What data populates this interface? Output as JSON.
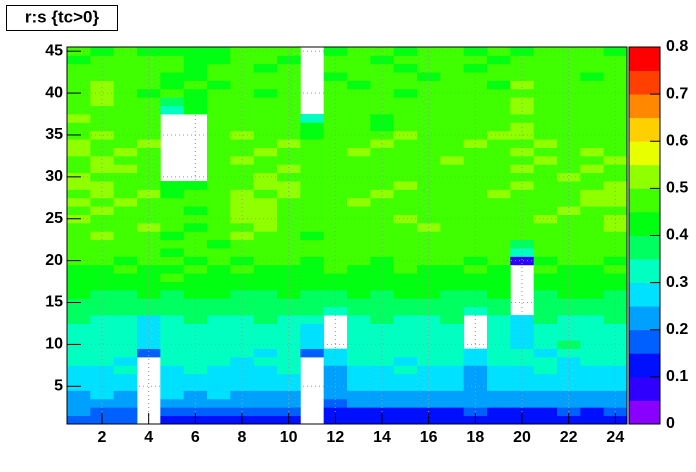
{
  "chart_data": {
    "type": "heatmap",
    "title": "r:s {tc>0}",
    "x": [
      1,
      2,
      3,
      4,
      5,
      6,
      7,
      8,
      9,
      10,
      11,
      12,
      13,
      14,
      15,
      16,
      17,
      18,
      19,
      20,
      21,
      22,
      23,
      24
    ],
    "y": [
      1,
      2,
      3,
      4,
      5,
      6,
      7,
      8,
      9,
      10,
      11,
      12,
      13,
      14,
      15,
      16,
      17,
      18,
      19,
      20,
      21,
      22,
      23,
      24,
      25,
      26,
      27,
      28,
      29,
      30,
      31,
      32,
      33,
      34,
      35,
      36,
      37,
      38,
      39,
      40,
      41,
      42,
      43,
      44,
      45
    ],
    "z": [
      [
        0.17,
        0.17,
        0.16,
        null,
        0.14,
        0.14,
        0.15,
        0.13,
        0.12,
        0.13,
        null,
        0.1,
        0.11,
        0.1,
        0.11,
        0.1,
        0.11,
        0.12,
        0.11,
        0.1,
        0.11,
        0.1,
        0.11,
        0.12
      ],
      [
        0.2,
        0.19,
        0.18,
        null,
        0.18,
        0.19,
        0.17,
        0.19,
        0.18,
        0.17,
        null,
        0.14,
        0.15,
        0.14,
        0.15,
        0.14,
        0.15,
        0.16,
        0.15,
        0.14,
        0.15,
        0.16,
        0.15,
        0.16
      ],
      [
        0.22,
        0.23,
        0.24,
        null,
        0.21,
        0.22,
        0.22,
        0.21,
        0.22,
        0.23,
        null,
        0.18,
        0.21,
        0.2,
        0.22,
        0.21,
        0.2,
        0.21,
        0.2,
        0.22,
        0.21,
        0.21,
        0.22,
        0.2
      ],
      [
        0.24,
        0.25,
        0.24,
        null,
        0.26,
        0.24,
        0.25,
        0.24,
        0.23,
        0.24,
        null,
        0.21,
        0.23,
        0.22,
        0.24,
        0.23,
        0.22,
        0.23,
        0.22,
        0.23,
        0.22,
        0.24,
        0.23,
        0.22
      ],
      [
        0.26,
        0.27,
        0.28,
        null,
        0.27,
        0.26,
        0.28,
        0.27,
        0.26,
        0.25,
        null,
        0.22,
        0.26,
        0.27,
        0.26,
        0.28,
        0.27,
        0.21,
        0.26,
        0.27,
        0.26,
        0.27,
        0.28,
        0.27
      ],
      [
        0.28,
        0.29,
        0.27,
        null,
        0.28,
        0.27,
        0.29,
        0.28,
        0.27,
        0.29,
        null,
        0.23,
        0.28,
        0.27,
        0.28,
        0.27,
        0.28,
        0.22,
        0.29,
        0.28,
        0.27,
        0.28,
        0.27,
        0.28
      ],
      [
        0.3,
        0.29,
        0.31,
        null,
        0.3,
        0.31,
        0.3,
        0.29,
        0.3,
        0.31,
        null,
        0.24,
        0.3,
        0.29,
        0.31,
        0.3,
        0.29,
        0.24,
        0.3,
        0.29,
        0.31,
        0.3,
        0.29,
        0.3
      ],
      [
        0.32,
        0.31,
        0.3,
        null,
        0.31,
        0.32,
        0.31,
        0.3,
        0.32,
        0.31,
        null,
        0.26,
        0.31,
        0.32,
        0.3,
        0.31,
        0.32,
        0.26,
        0.31,
        0.32,
        0.31,
        0.3,
        0.32,
        0.31
      ],
      [
        0.33,
        0.32,
        0.31,
        0.18,
        0.32,
        0.33,
        0.31,
        0.32,
        0.3,
        0.32,
        0.18,
        0.29,
        0.32,
        0.31,
        0.33,
        0.32,
        0.31,
        0.27,
        0.32,
        0.33,
        0.3,
        0.32,
        0.31,
        0.32
      ],
      [
        0.34,
        0.31,
        0.33,
        0.26,
        0.32,
        0.34,
        0.33,
        0.32,
        0.31,
        0.33,
        0.26,
        null,
        0.32,
        0.33,
        0.31,
        0.34,
        0.32,
        null,
        0.33,
        0.28,
        0.32,
        0.36,
        0.33,
        0.31
      ],
      [
        0.33,
        0.32,
        0.34,
        0.27,
        0.35,
        0.33,
        0.32,
        0.34,
        0.33,
        0.32,
        0.27,
        null,
        0.34,
        0.32,
        0.33,
        0.31,
        0.34,
        null,
        0.32,
        0.28,
        0.34,
        0.33,
        0.32,
        0.34
      ],
      [
        0.35,
        0.33,
        0.32,
        0.28,
        0.34,
        0.35,
        0.33,
        0.32,
        0.34,
        0.35,
        0.29,
        null,
        0.33,
        0.34,
        0.35,
        0.33,
        0.32,
        null,
        0.34,
        0.29,
        0.33,
        0.35,
        0.34,
        0.33
      ],
      [
        0.36,
        0.34,
        0.35,
        0.29,
        0.33,
        0.36,
        0.35,
        0.34,
        0.36,
        0.35,
        0.32,
        null,
        0.35,
        0.36,
        0.34,
        0.35,
        0.36,
        null,
        0.35,
        0.29,
        0.36,
        0.34,
        0.35,
        0.36
      ],
      [
        0.37,
        0.36,
        0.37,
        0.36,
        0.38,
        0.37,
        0.36,
        0.38,
        0.37,
        0.36,
        0.37,
        0.35,
        0.36,
        0.37,
        0.38,
        0.36,
        0.37,
        0.35,
        0.36,
        null,
        0.37,
        0.38,
        0.36,
        0.37
      ],
      [
        0.38,
        0.37,
        0.39,
        0.37,
        0.38,
        0.39,
        0.37,
        0.38,
        0.39,
        0.37,
        0.38,
        0.37,
        0.39,
        0.38,
        0.37,
        0.39,
        0.38,
        0.36,
        0.37,
        null,
        0.38,
        0.37,
        0.39,
        0.38
      ],
      [
        0.4,
        0.39,
        0.38,
        0.4,
        0.39,
        0.41,
        0.4,
        0.39,
        0.38,
        0.4,
        0.39,
        0.38,
        0.4,
        0.39,
        0.41,
        0.4,
        0.38,
        0.39,
        0.4,
        null,
        0.39,
        0.4,
        0.41,
        0.39
      ],
      [
        0.42,
        0.41,
        0.43,
        0.42,
        0.41,
        0.43,
        0.42,
        0.41,
        0.43,
        0.42,
        0.4,
        0.41,
        0.42,
        0.43,
        0.41,
        0.42,
        0.43,
        0.41,
        0.42,
        null,
        0.41,
        0.43,
        0.42,
        0.41
      ],
      [
        0.43,
        0.44,
        0.42,
        0.43,
        0.45,
        0.42,
        0.44,
        0.43,
        0.42,
        0.44,
        0.42,
        0.43,
        0.44,
        0.42,
        0.43,
        0.44,
        0.42,
        0.43,
        0.44,
        null,
        0.43,
        0.42,
        0.44,
        0.43
      ],
      [
        0.44,
        0.43,
        0.45,
        0.44,
        0.43,
        0.45,
        0.44,
        0.46,
        0.43,
        0.44,
        0.43,
        0.45,
        0.44,
        0.43,
        0.45,
        0.44,
        0.43,
        0.45,
        0.44,
        null,
        0.45,
        0.44,
        0.43,
        0.45
      ],
      [
        0.45,
        0.46,
        0.44,
        0.45,
        0.46,
        0.44,
        0.45,
        0.44,
        0.46,
        0.45,
        0.44,
        0.46,
        0.45,
        0.44,
        0.46,
        0.45,
        0.46,
        0.44,
        0.45,
        0.08,
        0.44,
        0.46,
        0.45,
        0.44
      ],
      [
        0.46,
        0.45,
        0.47,
        0.46,
        0.44,
        0.47,
        0.46,
        0.45,
        0.47,
        0.46,
        0.45,
        0.47,
        0.46,
        0.45,
        0.47,
        0.46,
        0.45,
        0.46,
        0.47,
        0.31,
        0.46,
        0.45,
        0.47,
        0.46
      ],
      [
        0.47,
        0.48,
        0.46,
        0.45,
        0.47,
        0.46,
        0.44,
        0.46,
        0.48,
        0.47,
        0.45,
        0.46,
        0.47,
        0.48,
        0.46,
        0.45,
        0.47,
        0.46,
        0.48,
        0.38,
        0.47,
        0.46,
        0.45,
        0.48
      ],
      [
        0.48,
        0.5,
        0.47,
        0.46,
        0.44,
        0.45,
        0.47,
        0.5,
        0.49,
        0.46,
        0.44,
        0.47,
        0.48,
        0.46,
        0.49,
        0.47,
        0.46,
        0.48,
        0.47,
        0.45,
        0.48,
        0.49,
        0.46,
        0.47
      ],
      [
        0.49,
        0.47,
        0.48,
        0.5,
        0.45,
        0.44,
        0.46,
        0.49,
        0.5,
        0.48,
        0.45,
        0.46,
        0.49,
        0.47,
        0.48,
        0.5,
        0.47,
        0.46,
        0.48,
        0.47,
        0.49,
        0.48,
        0.47,
        0.5
      ],
      [
        0.5,
        0.48,
        0.49,
        0.47,
        0.46,
        0.45,
        0.47,
        0.51,
        0.52,
        0.49,
        0.46,
        0.48,
        0.47,
        0.49,
        0.5,
        0.48,
        0.46,
        0.47,
        0.49,
        0.48,
        0.5,
        0.47,
        0.49,
        0.51
      ],
      [
        0.48,
        0.5,
        0.47,
        0.49,
        0.45,
        0.44,
        0.46,
        0.52,
        0.51,
        0.48,
        0.47,
        0.49,
        0.46,
        0.48,
        0.47,
        0.49,
        0.48,
        0.46,
        0.47,
        0.49,
        0.48,
        0.5,
        0.48,
        0.49
      ],
      [
        0.5,
        0.49,
        0.51,
        0.48,
        0.46,
        0.45,
        0.47,
        0.51,
        0.5,
        0.49,
        0.46,
        0.48,
        0.5,
        0.47,
        0.49,
        0.48,
        0.47,
        0.49,
        0.48,
        0.46,
        0.49,
        0.48,
        0.51,
        0.5
      ],
      [
        0.49,
        0.51,
        0.48,
        0.5,
        0.44,
        0.46,
        0.48,
        0.5,
        0.49,
        0.51,
        0.47,
        0.49,
        0.48,
        0.5,
        0.47,
        0.46,
        0.49,
        0.48,
        0.5,
        0.47,
        0.48,
        0.49,
        0.5,
        0.51
      ],
      [
        0.51,
        0.5,
        0.49,
        0.48,
        0.43,
        0.44,
        0.47,
        0.49,
        0.51,
        0.5,
        0.46,
        0.48,
        0.49,
        0.47,
        0.5,
        0.48,
        0.47,
        0.49,
        0.48,
        0.5,
        0.47,
        0.49,
        0.48,
        0.5
      ],
      [
        0.5,
        0.49,
        0.48,
        0.47,
        null,
        null,
        0.46,
        0.48,
        0.5,
        0.49,
        0.45,
        0.47,
        0.48,
        0.46,
        0.49,
        0.47,
        0.48,
        0.46,
        0.47,
        0.49,
        0.48,
        0.5,
        0.49,
        0.48
      ],
      [
        0.49,
        0.51,
        0.5,
        0.48,
        null,
        null,
        0.47,
        0.49,
        0.48,
        0.5,
        0.46,
        0.48,
        0.47,
        0.49,
        0.46,
        0.48,
        0.49,
        0.47,
        0.48,
        0.5,
        0.49,
        0.48,
        0.5,
        0.49
      ],
      [
        0.48,
        0.5,
        0.49,
        0.47,
        null,
        null,
        0.46,
        0.5,
        0.49,
        0.48,
        0.45,
        0.47,
        0.49,
        0.48,
        0.47,
        0.49,
        0.5,
        0.48,
        0.46,
        0.48,
        0.5,
        0.49,
        0.48,
        0.5
      ],
      [
        0.5,
        0.48,
        0.51,
        0.49,
        null,
        null,
        0.48,
        0.47,
        0.5,
        0.49,
        0.46,
        0.48,
        0.5,
        0.47,
        0.49,
        0.48,
        0.46,
        0.47,
        0.49,
        0.51,
        0.48,
        0.47,
        0.5,
        0.49
      ],
      [
        0.51,
        0.49,
        0.48,
        0.5,
        null,
        null,
        0.47,
        0.49,
        0.48,
        0.51,
        0.45,
        0.49,
        0.48,
        0.5,
        0.47,
        0.49,
        0.48,
        0.5,
        0.47,
        0.49,
        0.5,
        0.48,
        0.49,
        0.48
      ],
      [
        0.49,
        0.5,
        0.48,
        0.46,
        null,
        null,
        0.48,
        0.5,
        0.49,
        0.47,
        0.44,
        0.47,
        0.49,
        0.48,
        0.5,
        0.47,
        0.49,
        0.48,
        0.5,
        0.51,
        0.49,
        0.47,
        0.48,
        0.49
      ],
      [
        0.48,
        0.47,
        0.49,
        0.45,
        null,
        null,
        0.46,
        0.48,
        0.47,
        0.49,
        0.43,
        0.46,
        0.48,
        0.41,
        0.47,
        0.48,
        0.46,
        0.49,
        0.47,
        0.5,
        0.48,
        0.46,
        0.49,
        0.47
      ],
      [
        0.5,
        0.48,
        0.47,
        0.46,
        null,
        null,
        0.47,
        0.46,
        0.48,
        0.47,
        0.35,
        0.45,
        0.47,
        0.4,
        0.46,
        0.47,
        0.48,
        0.46,
        0.48,
        0.49,
        0.47,
        0.48,
        0.46,
        0.48
      ],
      [
        0.47,
        0.49,
        0.48,
        0.47,
        0.34,
        0.42,
        0.45,
        0.47,
        0.46,
        0.48,
        null,
        0.46,
        0.45,
        0.47,
        0.48,
        0.46,
        0.47,
        0.45,
        0.46,
        0.51,
        0.48,
        0.47,
        0.45,
        0.47
      ],
      [
        0.48,
        0.5,
        0.46,
        0.45,
        0.38,
        0.44,
        0.46,
        0.48,
        0.45,
        0.47,
        null,
        0.47,
        0.46,
        0.45,
        0.47,
        0.48,
        0.46,
        0.47,
        0.45,
        0.5,
        0.46,
        0.48,
        0.47,
        0.46
      ],
      [
        0.46,
        0.51,
        0.47,
        0.44,
        0.45,
        0.43,
        0.47,
        0.46,
        0.44,
        0.48,
        null,
        0.45,
        0.47,
        0.46,
        0.44,
        0.47,
        0.45,
        0.46,
        0.47,
        0.49,
        0.45,
        0.47,
        0.46,
        0.48
      ],
      [
        0.47,
        0.5,
        0.45,
        0.46,
        0.43,
        0.45,
        0.44,
        0.47,
        0.46,
        0.45,
        null,
        0.46,
        0.44,
        0.47,
        0.45,
        0.46,
        0.47,
        0.45,
        0.44,
        0.5,
        0.46,
        0.45,
        0.47,
        0.46
      ],
      [
        0.45,
        0.49,
        0.46,
        0.47,
        0.44,
        0.44,
        0.46,
        0.45,
        0.47,
        0.46,
        null,
        0.44,
        0.46,
        0.45,
        0.47,
        0.44,
        0.46,
        0.47,
        0.45,
        0.48,
        0.47,
        0.46,
        0.44,
        0.47
      ],
      [
        0.46,
        0.47,
        0.45,
        0.48,
        0.45,
        0.43,
        0.45,
        0.46,
        0.44,
        0.45,
        null,
        0.45,
        0.47,
        0.46,
        0.44,
        0.46,
        0.45,
        0.44,
        0.46,
        0.47,
        0.45,
        0.48,
        0.46,
        0.45
      ],
      [
        0.44,
        0.46,
        0.47,
        0.45,
        0.46,
        0.44,
        0.43,
        0.45,
        0.46,
        0.44,
        null,
        0.46,
        0.45,
        0.44,
        0.46,
        0.47,
        0.45,
        0.46,
        0.44,
        0.46,
        0.47,
        0.45,
        0.48,
        0.46
      ],
      [
        0.45,
        0.44,
        0.46,
        0.44,
        0.4,
        0.41,
        0.44,
        0.46,
        0.45,
        0.46,
        null,
        0.44,
        0.46,
        0.45,
        0.44,
        0.45,
        0.46,
        0.44,
        0.45,
        0.44,
        0.46,
        0.47,
        0.45,
        0.44
      ]
    ],
    "xlim": [
      0.5,
      24.5
    ],
    "ylim": [
      0.5,
      45.5
    ],
    "xticks": [
      2,
      4,
      6,
      8,
      10,
      12,
      14,
      16,
      18,
      20,
      22,
      24
    ],
    "yticks": [
      5,
      10,
      15,
      20,
      25,
      30,
      35,
      40,
      45
    ],
    "zlim": [
      0,
      0.8
    ],
    "zticks": [
      0,
      0.1,
      0.2,
      0.3,
      0.4,
      0.5,
      0.6,
      0.7,
      0.8
    ],
    "colors": [
      "#8a00ff",
      "#3000ff",
      "#0010ff",
      "#0060ff",
      "#00a0ff",
      "#00e0ff",
      "#00ffc0",
      "#00ff60",
      "#00ff10",
      "#40ff00",
      "#90ff00",
      "#e8ff00",
      "#ffd000",
      "#ff8800",
      "#ff4000",
      "#ff0000"
    ],
    "grid": true
  }
}
